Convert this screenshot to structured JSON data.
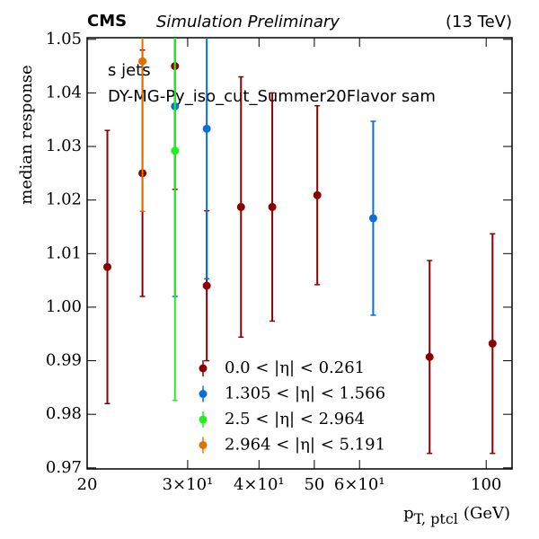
{
  "chart_data": {
    "type": "errorbar",
    "experiment": "CMS",
    "subtitle": "Simulation Preliminary",
    "energy": "(13 TeV)",
    "annotations": [
      "s jets",
      "DY-MG-Py_iso_cut_Summer20Flavor sam"
    ],
    "ylabel": "median response",
    "xlabel": {
      "main": "p",
      "sub": "T, ptcl",
      "unit": "(GeV)"
    },
    "log_x": true,
    "xlim": [
      20,
      111
    ],
    "ylim": [
      0.9698,
      1.0503
    ],
    "xticks": [
      20,
      {
        "value": 30,
        "label": "3×10¹"
      },
      {
        "value": 40,
        "label": "4×10¹"
      },
      50,
      {
        "value": 60,
        "label": "6×10¹"
      },
      100
    ],
    "yticks": [
      0.97,
      0.98,
      0.99,
      {
        "value": 1,
        "label": "1.00"
      },
      1.01,
      1.02,
      1.03,
      1.04,
      1.05
    ],
    "series": [
      {
        "name": "0.0 < |η| < 0.261",
        "color": "#8b0000",
        "x": [
          21.7,
          25.0,
          28.5,
          32.4,
          37.2,
          42.2,
          50.6,
          79.6,
          102.6
        ],
        "values": [
          1.0075,
          1.025,
          1.045,
          1.004,
          1.0187,
          1.0187,
          1.0209,
          0.9907,
          0.9932
        ],
        "errors": [
          0.0255,
          0.023,
          0.023,
          0.014,
          0.0243,
          0.0213,
          0.0167,
          0.018,
          0.0205
        ]
      },
      {
        "name": "1.305 < |η| < 1.566",
        "color": "#0a6fd6",
        "x": [
          28.5,
          32.4,
          63.4
        ],
        "values": [
          1.0375,
          1.0333,
          1.0166
        ],
        "errors": [
          0.0355,
          0.028,
          0.0181
        ]
      },
      {
        "name": "2.5 < |η| < 2.964",
        "color": "#22ee22",
        "x": [
          28.5
        ],
        "values": [
          1.0292
        ],
        "errors": [
          0.0466
        ]
      },
      {
        "name": "2.964 < |η| < 5.191",
        "color": "#e07000",
        "x": [
          25.0
        ],
        "values": [
          1.0459
        ],
        "errors": [
          0.028
        ]
      }
    ]
  }
}
